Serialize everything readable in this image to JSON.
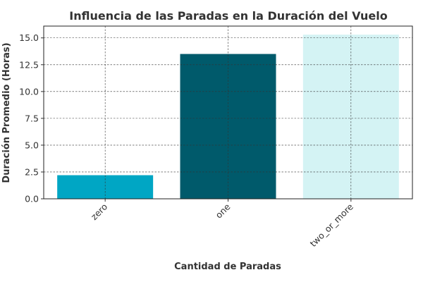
{
  "chart_data": {
    "type": "bar",
    "title": "Influencia de las Paradas en la Duración del Vuelo",
    "xlabel": "Cantidad de Paradas",
    "ylabel": "Duración Promedio (Horas)",
    "categories": [
      "zero",
      "one",
      "two_or_more"
    ],
    "values": [
      2.2,
      13.5,
      15.3
    ],
    "colors": [
      "#00a6c4",
      "#005a6b",
      "#d4f3f4"
    ],
    "ylim": [
      0,
      16.1
    ],
    "yticks": [
      "0.0",
      "2.5",
      "5.0",
      "7.5",
      "10.0",
      "12.5",
      "15.0"
    ],
    "grid": true
  }
}
